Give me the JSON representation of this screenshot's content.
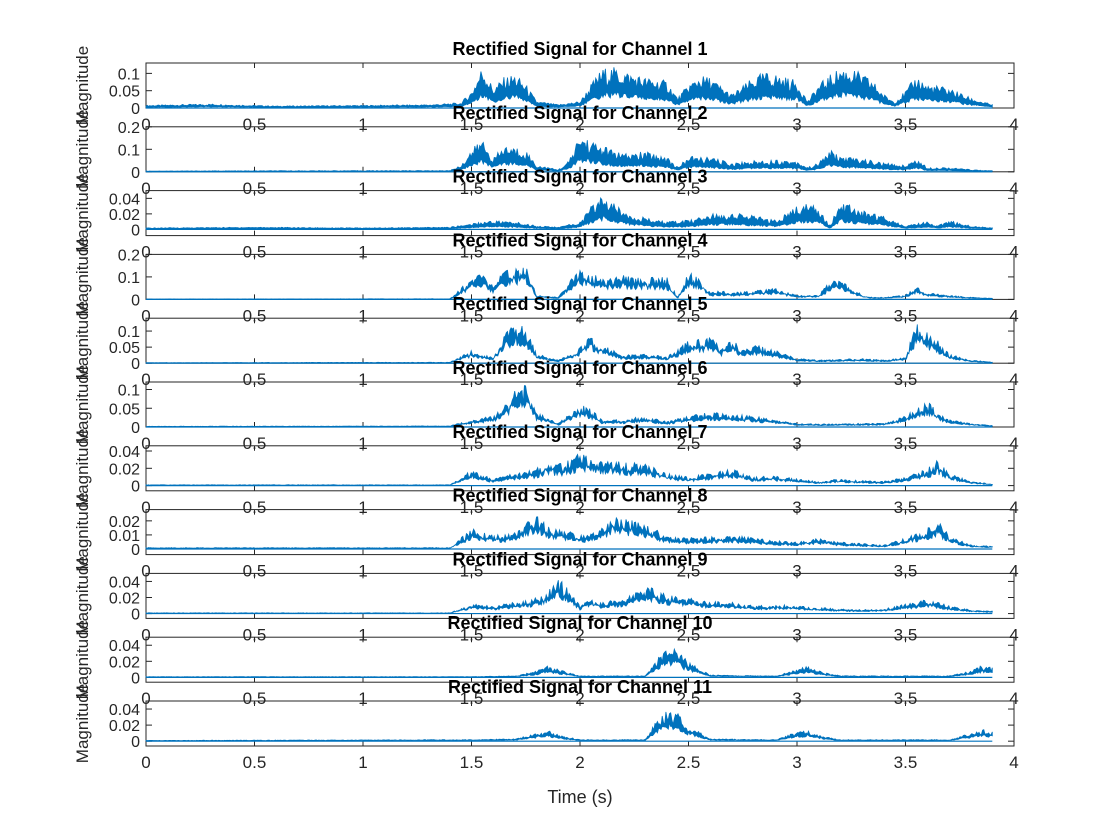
{
  "figure": {
    "xlabel": "Time (s)",
    "xlim": [
      0,
      4
    ],
    "xticks": [
      0,
      0.5,
      1,
      1.5,
      2,
      2.5,
      3,
      3.5,
      4
    ],
    "xtick_labels": [
      "0",
      "0.5",
      "1",
      "1.5",
      "2",
      "2.5",
      "3",
      "3.5",
      "4"
    ],
    "line_color": "#0072BD",
    "background": "#ffffff",
    "axis_color": "#262626"
  },
  "chart_data": [
    {
      "type": "area",
      "title": "Rectified Signal for Channel 1",
      "ylabel": "Magnitude",
      "ylim": [
        0,
        0.13
      ],
      "yticks": [
        0,
        0.05,
        0.1
      ],
      "ytick_labels": [
        "0",
        "0.05",
        "0.1"
      ],
      "series": [
        {
          "x": [
            0,
            0.3,
            0.6,
            1.0,
            1.3,
            1.45,
            1.5,
            1.55,
            1.6,
            1.65,
            1.7,
            1.75,
            1.8,
            1.9,
            2.0,
            2.05,
            2.1,
            2.15,
            2.2,
            2.3,
            2.4,
            2.45,
            2.5,
            2.55,
            2.6,
            2.7,
            2.8,
            2.85,
            2.9,
            3.0,
            3.05,
            3.1,
            3.2,
            3.25,
            3.3,
            3.35,
            3.4,
            3.45,
            3.5,
            3.55,
            3.6,
            3.7,
            3.8,
            3.9
          ],
          "y": [
            0.008,
            0.012,
            0.006,
            0.008,
            0.01,
            0.015,
            0.05,
            0.125,
            0.06,
            0.09,
            0.1,
            0.07,
            0.02,
            0.01,
            0.02,
            0.07,
            0.115,
            0.12,
            0.11,
            0.09,
            0.08,
            0.03,
            0.07,
            0.095,
            0.09,
            0.04,
            0.09,
            0.105,
            0.1,
            0.08,
            0.02,
            0.07,
            0.12,
            0.115,
            0.1,
            0.08,
            0.04,
            0.02,
            0.05,
            0.095,
            0.07,
            0.06,
            0.03,
            0.01
          ],
          "fill": 0.6
        }
      ]
    },
    {
      "type": "area",
      "title": "Rectified Signal for Channel 2",
      "ylabel": "Magnitude",
      "ylim": [
        0,
        0.2
      ],
      "yticks": [
        0,
        0.1,
        0.2
      ],
      "ytick_labels": [
        "0",
        "0.1",
        "0.2"
      ],
      "series": [
        {
          "x": [
            0,
            1.4,
            1.45,
            1.5,
            1.55,
            1.6,
            1.65,
            1.7,
            1.75,
            1.8,
            1.9,
            1.95,
            2.0,
            2.05,
            2.1,
            2.15,
            2.2,
            2.3,
            2.4,
            2.45,
            2.5,
            2.6,
            2.7,
            2.8,
            2.9,
            3.0,
            3.05,
            3.1,
            3.15,
            3.2,
            3.3,
            3.4,
            3.5,
            3.55,
            3.6,
            3.7,
            3.8,
            3.9
          ],
          "y": [
            0.004,
            0.006,
            0.03,
            0.1,
            0.15,
            0.06,
            0.12,
            0.11,
            0.1,
            0.03,
            0.01,
            0.05,
            0.17,
            0.14,
            0.12,
            0.1,
            0.08,
            0.09,
            0.07,
            0.02,
            0.07,
            0.065,
            0.04,
            0.05,
            0.055,
            0.05,
            0.02,
            0.04,
            0.1,
            0.07,
            0.06,
            0.04,
            0.03,
            0.06,
            0.02,
            0.02,
            0.01,
            0.005
          ],
          "fill": 0.6
        }
      ]
    },
    {
      "type": "line",
      "title": "Rectified Signal for Channel 3",
      "ylabel": "Magnitude",
      "ylim": [
        -0.008,
        0.05
      ],
      "yticks": [
        0,
        0.02,
        0.04
      ],
      "ytick_labels": [
        "0",
        "0.02",
        "0.04"
      ],
      "series": [
        {
          "x": [
            0,
            0.5,
            1.0,
            1.4,
            1.5,
            1.6,
            1.7,
            1.8,
            1.9,
            2.0,
            2.05,
            2.1,
            2.15,
            2.2,
            2.3,
            2.4,
            2.5,
            2.6,
            2.7,
            2.8,
            2.9,
            3.0,
            3.05,
            3.1,
            3.15,
            3.2,
            3.25,
            3.3,
            3.4,
            3.5,
            3.6,
            3.65,
            3.7,
            3.8,
            3.9
          ],
          "y": [
            0.002,
            0.003,
            0.002,
            0.003,
            0.008,
            0.012,
            0.01,
            0.005,
            0.003,
            0.01,
            0.03,
            0.045,
            0.035,
            0.025,
            0.015,
            0.01,
            0.012,
            0.02,
            0.022,
            0.018,
            0.012,
            0.03,
            0.035,
            0.03,
            0.005,
            0.035,
            0.032,
            0.025,
            0.018,
            0.005,
            0.01,
            0.005,
            0.012,
            0.005,
            0.002
          ],
          "fill": 0.6
        }
      ]
    },
    {
      "type": "area",
      "title": "Rectified Signal for Channel 4",
      "ylabel": "Magnitude",
      "ylim": [
        0,
        0.2
      ],
      "yticks": [
        0,
        0.1,
        0.2
      ],
      "ytick_labels": [
        "0",
        "0.1",
        "0.2"
      ],
      "series": [
        {
          "x": [
            0,
            1.4,
            1.5,
            1.55,
            1.6,
            1.65,
            1.7,
            1.75,
            1.8,
            1.9,
            2.0,
            2.05,
            2.1,
            2.2,
            2.3,
            2.4,
            2.45,
            2.5,
            2.55,
            2.6,
            2.65,
            2.7,
            2.8,
            2.9,
            3.0,
            3.1,
            3.15,
            3.2,
            3.3,
            3.35,
            3.4,
            3.5,
            3.55,
            3.6,
            3.7,
            3.8,
            3.9
          ],
          "y": [
            0.002,
            0.003,
            0.1,
            0.12,
            0.06,
            0.13,
            0.15,
            0.16,
            0.02,
            0.01,
            0.15,
            0.12,
            0.1,
            0.11,
            0.1,
            0.1,
            0.01,
            0.12,
            0.1,
            0.03,
            0.04,
            0.03,
            0.04,
            0.05,
            0.02,
            0.02,
            0.08,
            0.09,
            0.02,
            0.01,
            0.01,
            0.02,
            0.06,
            0.03,
            0.02,
            0.01,
            0.005
          ],
          "fill": 0.3
        }
      ]
    },
    {
      "type": "area",
      "title": "Rectified Signal for Channel 5",
      "ylabel": "Magnitude",
      "ylim": [
        0,
        0.14
      ],
      "yticks": [
        0,
        0.05,
        0.1
      ],
      "ytick_labels": [
        "0",
        "0.05",
        "0.1"
      ],
      "series": [
        {
          "x": [
            0,
            1.4,
            1.5,
            1.6,
            1.65,
            1.7,
            1.75,
            1.8,
            1.9,
            2.0,
            2.05,
            2.1,
            2.2,
            2.3,
            2.4,
            2.5,
            2.6,
            2.65,
            2.7,
            2.75,
            2.8,
            2.9,
            3.0,
            3.1,
            3.3,
            3.4,
            3.5,
            3.55,
            3.6,
            3.65,
            3.7,
            3.8,
            3.9
          ],
          "y": [
            0.002,
            0.003,
            0.04,
            0.02,
            0.09,
            0.13,
            0.11,
            0.03,
            0.01,
            0.05,
            0.09,
            0.06,
            0.025,
            0.03,
            0.02,
            0.07,
            0.085,
            0.05,
            0.08,
            0.04,
            0.06,
            0.04,
            0.015,
            0.01,
            0.015,
            0.01,
            0.02,
            0.13,
            0.1,
            0.07,
            0.03,
            0.01,
            0.004
          ],
          "fill": 0.3
        }
      ]
    },
    {
      "type": "area",
      "title": "Rectified Signal for Channel 6",
      "ylabel": "Magnitude",
      "ylim": [
        0,
        0.12
      ],
      "yticks": [
        0,
        0.05,
        0.1
      ],
      "ytick_labels": [
        "0",
        "0.05",
        "0.1"
      ],
      "series": [
        {
          "x": [
            0,
            1.4,
            1.5,
            1.6,
            1.65,
            1.7,
            1.75,
            1.8,
            1.9,
            2.0,
            2.05,
            2.1,
            2.2,
            2.3,
            2.4,
            2.5,
            2.6,
            2.7,
            2.8,
            2.9,
            3.0,
            3.1,
            3.3,
            3.4,
            3.5,
            3.55,
            3.6,
            3.65,
            3.7,
            3.8,
            3.9
          ],
          "y": [
            0.002,
            0.003,
            0.02,
            0.03,
            0.06,
            0.1,
            0.115,
            0.04,
            0.01,
            0.06,
            0.05,
            0.02,
            0.02,
            0.03,
            0.015,
            0.03,
            0.04,
            0.035,
            0.03,
            0.02,
            0.01,
            0.008,
            0.01,
            0.01,
            0.03,
            0.05,
            0.07,
            0.04,
            0.02,
            0.01,
            0.004
          ],
          "fill": 0.3
        }
      ]
    },
    {
      "type": "area",
      "title": "Rectified Signal for Channel 7",
      "ylabel": "Magnitude",
      "ylim": [
        -0.006,
        0.046
      ],
      "yticks": [
        0,
        0.02,
        0.04
      ],
      "ytick_labels": [
        "0",
        "0.02",
        "0.04"
      ],
      "series": [
        {
          "x": [
            0,
            1.4,
            1.5,
            1.6,
            1.7,
            1.8,
            1.85,
            1.9,
            1.95,
            2.0,
            2.05,
            2.1,
            2.2,
            2.3,
            2.4,
            2.5,
            2.6,
            2.7,
            2.8,
            2.9,
            3.0,
            3.1,
            3.2,
            3.3,
            3.4,
            3.5,
            3.6,
            3.65,
            3.7,
            3.8,
            3.9
          ],
          "y": [
            0.001,
            0.001,
            0.018,
            0.008,
            0.015,
            0.02,
            0.03,
            0.025,
            0.03,
            0.038,
            0.035,
            0.03,
            0.028,
            0.025,
            0.015,
            0.01,
            0.015,
            0.02,
            0.01,
            0.012,
            0.008,
            0.005,
            0.008,
            0.006,
            0.005,
            0.01,
            0.02,
            0.03,
            0.015,
            0.005,
            0.002
          ],
          "fill": 0.3
        }
      ]
    },
    {
      "type": "area",
      "title": "Rectified Signal for Channel 8",
      "ylabel": "Magnitude",
      "ylim": [
        -0.004,
        0.028
      ],
      "yticks": [
        0,
        0.01,
        0.02
      ],
      "ytick_labels": [
        "0",
        "0.01",
        "0.02"
      ],
      "series": [
        {
          "x": [
            0,
            1.4,
            1.5,
            1.6,
            1.7,
            1.75,
            1.8,
            1.85,
            1.9,
            2.0,
            2.1,
            2.15,
            2.2,
            2.3,
            2.4,
            2.5,
            2.6,
            2.7,
            2.8,
            2.9,
            3.0,
            3.1,
            3.2,
            3.3,
            3.4,
            3.5,
            3.6,
            3.65,
            3.7,
            3.8,
            3.9
          ],
          "y": [
            0.001,
            0.001,
            0.015,
            0.01,
            0.012,
            0.02,
            0.025,
            0.018,
            0.015,
            0.01,
            0.015,
            0.025,
            0.022,
            0.018,
            0.01,
            0.008,
            0.009,
            0.01,
            0.008,
            0.006,
            0.005,
            0.008,
            0.005,
            0.004,
            0.003,
            0.008,
            0.015,
            0.02,
            0.01,
            0.003,
            0.002
          ],
          "fill": 0.3
        }
      ]
    },
    {
      "type": "area",
      "title": "Rectified Signal for Channel 9",
      "ylabel": "Magnitude",
      "ylim": [
        -0.006,
        0.05
      ],
      "yticks": [
        0,
        0.02,
        0.04
      ],
      "ytick_labels": [
        "0",
        "0.02",
        "0.04"
      ],
      "series": [
        {
          "x": [
            0,
            1.4,
            1.5,
            1.6,
            1.7,
            1.8,
            1.85,
            1.9,
            1.95,
            2.0,
            2.05,
            2.1,
            2.2,
            2.3,
            2.4,
            2.5,
            2.6,
            2.7,
            2.8,
            2.9,
            3.0,
            3.1,
            3.2,
            3.3,
            3.4,
            3.5,
            3.6,
            3.7,
            3.8,
            3.9
          ],
          "y": [
            0.001,
            0.001,
            0.012,
            0.01,
            0.015,
            0.02,
            0.03,
            0.045,
            0.03,
            0.01,
            0.02,
            0.015,
            0.02,
            0.035,
            0.025,
            0.02,
            0.015,
            0.015,
            0.01,
            0.012,
            0.01,
            0.008,
            0.006,
            0.005,
            0.006,
            0.012,
            0.018,
            0.01,
            0.005,
            0.003
          ],
          "fill": 0.3
        }
      ]
    },
    {
      "type": "area",
      "title": "Rectified Signal for Channel 10",
      "ylabel": "Magnitude",
      "ylim": [
        -0.006,
        0.05
      ],
      "yticks": [
        0,
        0.02,
        0.04
      ],
      "ytick_labels": [
        "0",
        "0.02",
        "0.04"
      ],
      "series": [
        {
          "x": [
            0,
            1.5,
            1.7,
            1.8,
            1.85,
            1.9,
            2.0,
            2.3,
            2.35,
            2.4,
            2.45,
            2.5,
            2.6,
            2.9,
            3.0,
            3.05,
            3.1,
            3.2,
            3.7,
            3.8,
            3.85,
            3.9
          ],
          "y": [
            0.001,
            0.001,
            0.002,
            0.008,
            0.015,
            0.01,
            0.002,
            0.002,
            0.02,
            0.04,
            0.035,
            0.02,
            0.003,
            0.002,
            0.01,
            0.015,
            0.008,
            0.002,
            0.002,
            0.008,
            0.015,
            0.012
          ],
          "fill": 0.4
        }
      ]
    },
    {
      "type": "area",
      "title": "Rectified Signal for Channel 11",
      "ylabel": "Magnitude",
      "ylim": [
        -0.006,
        0.05
      ],
      "yticks": [
        0,
        0.02,
        0.04
      ],
      "ytick_labels": [
        "0",
        "0.02",
        "0.04"
      ],
      "series": [
        {
          "x": [
            0,
            1.5,
            1.7,
            1.8,
            1.85,
            1.9,
            2.0,
            2.3,
            2.35,
            2.4,
            2.45,
            2.5,
            2.6,
            2.9,
            3.0,
            3.05,
            3.1,
            3.2,
            3.7,
            3.8,
            3.85,
            3.9
          ],
          "y": [
            0.001,
            0.002,
            0.003,
            0.01,
            0.014,
            0.008,
            0.002,
            0.002,
            0.025,
            0.04,
            0.035,
            0.02,
            0.003,
            0.002,
            0.012,
            0.014,
            0.008,
            0.002,
            0.002,
            0.01,
            0.015,
            0.012
          ],
          "fill": 0.4
        }
      ]
    }
  ]
}
